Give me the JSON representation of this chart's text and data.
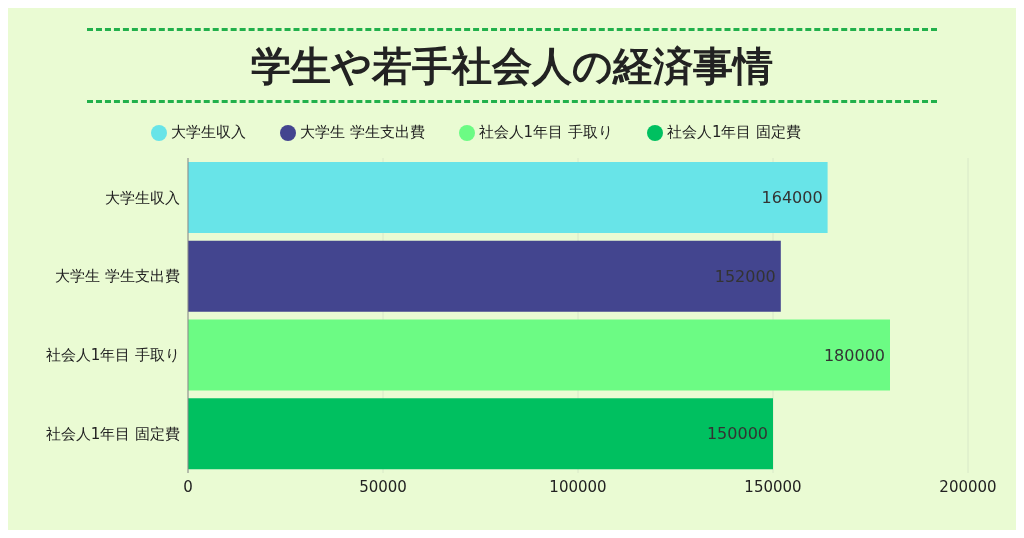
{
  "chart_data": {
    "type": "bar",
    "orientation": "horizontal",
    "stacked": true,
    "title": "学生や若手社会人の経済事情",
    "categories": [
      "大学生収入",
      "大学生 学生支出費",
      "社会人1年目 手取り",
      "社会人1年目 固定費"
    ],
    "series": [
      {
        "name": "大学生収入",
        "color": "#68e4e8",
        "values": [
          164000,
          null,
          null,
          null
        ]
      },
      {
        "name": "大学生 学生支出費",
        "color": "#43458f",
        "values": [
          null,
          152000,
          null,
          null
        ]
      },
      {
        "name": "社会人1年目 手取り",
        "color": "#6cfb84",
        "values": [
          null,
          null,
          180000,
          null
        ]
      },
      {
        "name": "社会人1年目 固定費",
        "color": "#00c060",
        "values": [
          null,
          null,
          null,
          150000
        ]
      }
    ],
    "xlim": [
      0,
      200000
    ],
    "xticks": [
      0,
      50000,
      100000,
      150000,
      200000
    ],
    "grid": "x",
    "legend": "top",
    "data_labels": true
  }
}
